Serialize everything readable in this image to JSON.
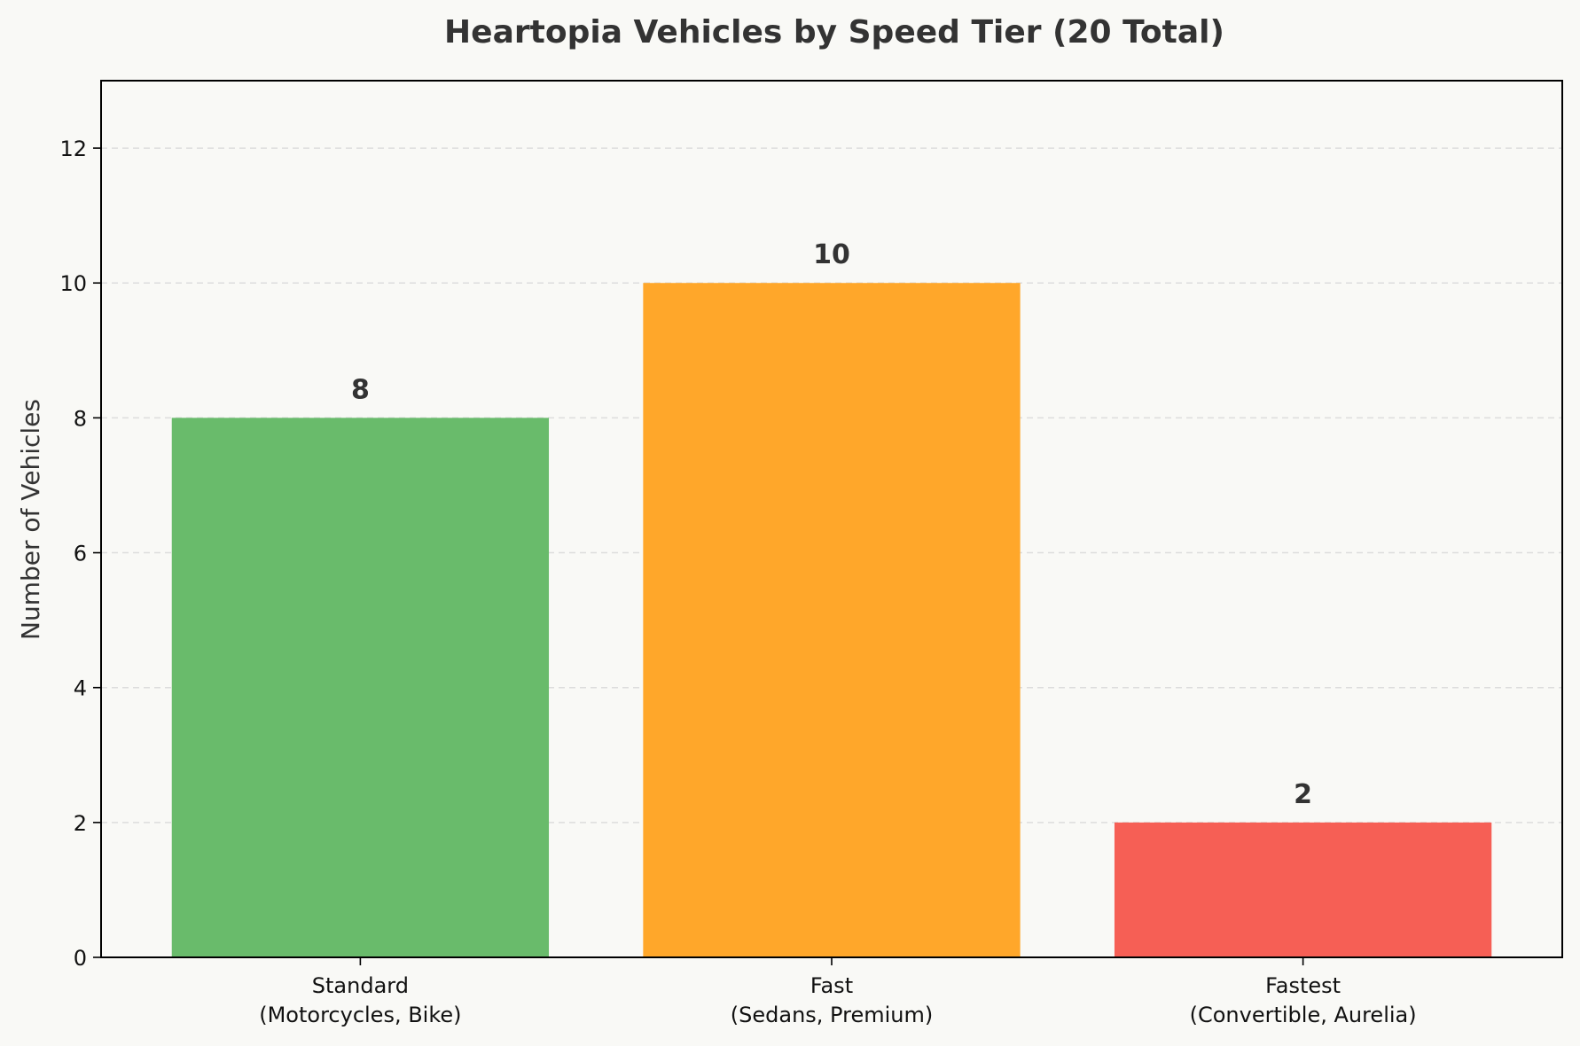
{
  "chart_data": {
    "type": "bar",
    "title": "Heartopia Vehicles by Speed Tier (20 Total)",
    "xlabel": "",
    "ylabel": "Number of Vehicles",
    "categories": [
      [
        "Standard",
        "(Motorcycles, Bike)"
      ],
      [
        "Fast",
        "(Sedans, Premium)"
      ],
      [
        "Fastest",
        "(Convertible, Aurelia)"
      ]
    ],
    "values": [
      8,
      10,
      2
    ],
    "colors": [
      "#69bb6b",
      "#ffa72a",
      "#f65f55"
    ],
    "ylim": [
      0,
      13
    ],
    "yticks": [
      0,
      2,
      4,
      6,
      8,
      10,
      12
    ],
    "grid": true,
    "grid_axis": "y",
    "legend": "none",
    "background": "#f9f9f6",
    "text_color": "#333333"
  }
}
